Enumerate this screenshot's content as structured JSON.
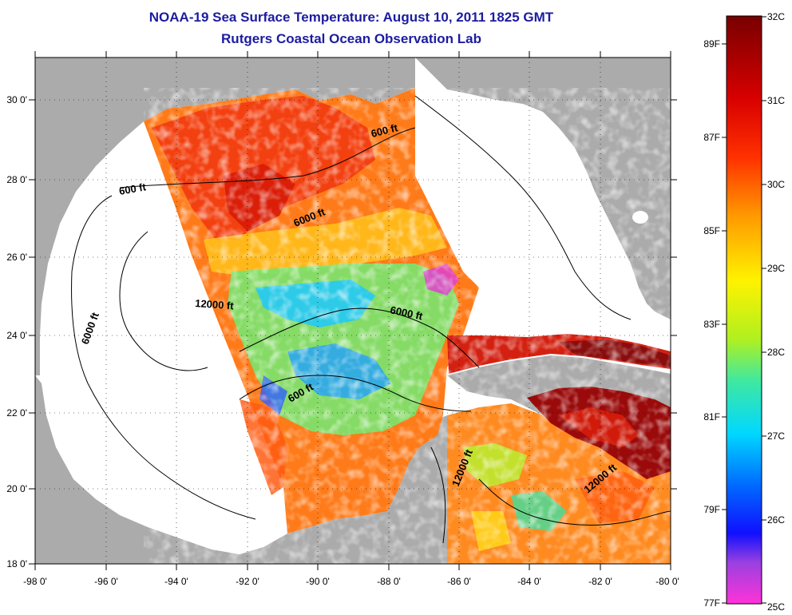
{
  "title_line1": "NOAA-19 Sea Surface Temperature:  August 10, 2011 1825 GMT",
  "title_line2": "Rutgers Coastal Ocean Observation Lab",
  "map": {
    "lon_range": [
      -98,
      -80
    ],
    "lat_range": [
      18,
      31
    ],
    "x_ticks": [
      "-98 0'",
      "-96 0'",
      "-94 0'",
      "-92 0'",
      "-90 0'",
      "-88 0'",
      "-86 0'",
      "-84 0'",
      "-82 0'",
      "-80 0'"
    ],
    "y_ticks": [
      "30 0'",
      "28 0'",
      "26 0'",
      "24 0'",
      "22 0'",
      "20 0'",
      "18 0'"
    ],
    "land_color": "#ababab",
    "nodata_color": "#ffffff",
    "contour_labels": [
      {
        "text": "600 ft"
      },
      {
        "text": "600 ft"
      },
      {
        "text": "6000 ft"
      },
      {
        "text": "12000 ft"
      },
      {
        "text": "6000 ft"
      },
      {
        "text": "6000 ft"
      },
      {
        "text": "600 ft"
      },
      {
        "text": "12000 ft"
      },
      {
        "text": "12000 ft"
      }
    ]
  },
  "colorbar": {
    "celsius_labels": [
      "32C",
      "31C",
      "30C",
      "29C",
      "28C",
      "27C",
      "26C",
      "25C"
    ],
    "fahrenheit_labels": [
      "89F",
      "87F",
      "85F",
      "83F",
      "81F",
      "79F",
      "77F"
    ],
    "stops": [
      "#ff33d8",
      "#8838e8",
      "#0010ff",
      "#0090ff",
      "#00e6ff",
      "#40e8a0",
      "#c8f020",
      "#fff200",
      "#ff9900",
      "#ff2a00",
      "#c00000",
      "#7a0000"
    ]
  }
}
